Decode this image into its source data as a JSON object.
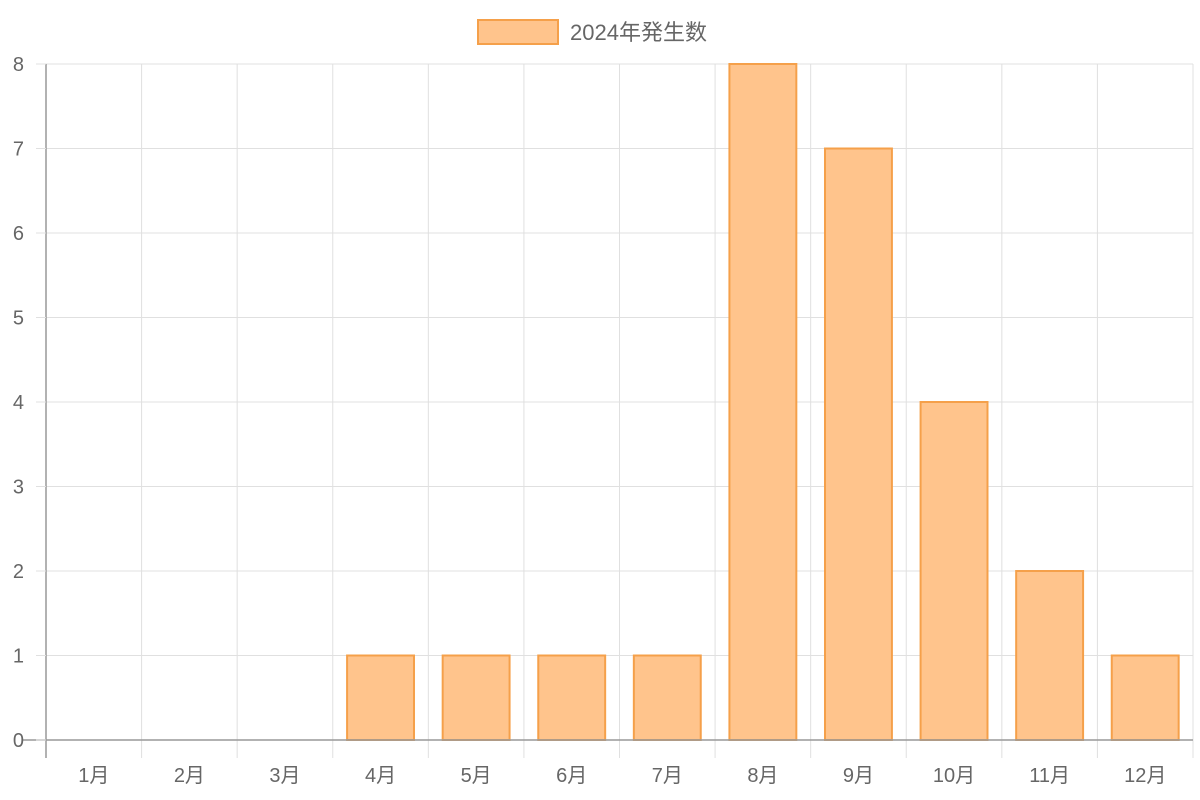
{
  "chart_data": {
    "type": "bar",
    "categories": [
      "1月",
      "2月",
      "3月",
      "4月",
      "5月",
      "6月",
      "7月",
      "8月",
      "9月",
      "10月",
      "11月",
      "12月"
    ],
    "series": [
      {
        "name": "2024年発生数",
        "values": [
          0,
          0,
          0,
          1,
          1,
          1,
          1,
          8,
          7,
          4,
          2,
          1
        ]
      }
    ],
    "ylim": [
      0,
      8
    ],
    "yticks": [
      0,
      1,
      2,
      3,
      4,
      5,
      6,
      7,
      8
    ],
    "grid": true,
    "legend_position": "top-center",
    "colors": {
      "bar_fill": "#FFC48C",
      "bar_border": "#F5A04A",
      "grid": "#E0E0E0",
      "axis": "#999999",
      "text": "#666666"
    }
  }
}
